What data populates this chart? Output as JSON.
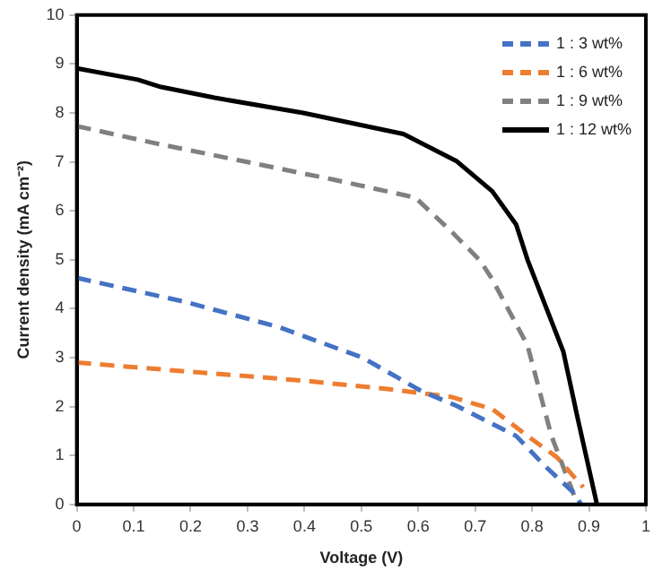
{
  "chart_data": {
    "type": "line",
    "xlabel": "Voltage (V)",
    "ylabel": "Current density (mA cm⁻²)",
    "xlim": [
      0,
      1
    ],
    "xticks": [
      0,
      0.1,
      0.2,
      0.3,
      0.4,
      0.5,
      0.6,
      0.7,
      0.8,
      0.9,
      1
    ],
    "ylim": [
      0,
      10
    ],
    "yticks": [
      0,
      1,
      2,
      3,
      4,
      5,
      6,
      7,
      8,
      9,
      10
    ],
    "grid": false,
    "legend": "top right",
    "marker": "none",
    "series": [
      {
        "name": "1 : 3 wt%",
        "color": "#4472c4",
        "line_style": "dashed",
        "x": [
          0,
          0.19,
          0.356,
          0.502,
          0.605,
          0.668,
          0.772,
          0.823,
          0.875,
          0.886
        ],
        "values": [
          4.63,
          4.14,
          3.62,
          3.0,
          2.32,
          2.01,
          1.4,
          0.78,
          0.22,
          0
        ]
      },
      {
        "name": "1 : 6 wt%",
        "color": "#ed7d31",
        "line_style": "dashed",
        "x": [
          0,
          0.19,
          0.398,
          0.553,
          0.657,
          0.73,
          0.792,
          0.844,
          0.89
        ],
        "values": [
          2.9,
          2.72,
          2.53,
          2.35,
          2.2,
          1.95,
          1.4,
          0.96,
          0.35
        ]
      },
      {
        "name": "1 : 9 wt%",
        "color": "#808080",
        "line_style": "dashed",
        "x": [
          0,
          0.138,
          0.294,
          0.45,
          0.595,
          0.657,
          0.709,
          0.73,
          0.792,
          0.834,
          0.88
        ],
        "values": [
          7.73,
          7.38,
          7.01,
          6.64,
          6.27,
          5.59,
          4.98,
          4.6,
          3.25,
          1.4,
          0
        ]
      },
      {
        "name": "1 : 12 wt%",
        "color": "#000000",
        "line_style": "solid",
        "x": [
          0,
          0.107,
          0.148,
          0.242,
          0.398,
          0.574,
          0.668,
          0.73,
          0.772,
          0.792,
          0.855,
          0.88,
          0.914
        ],
        "values": [
          8.91,
          8.68,
          8.53,
          8.31,
          8.0,
          7.57,
          7.01,
          6.4,
          5.72,
          5.0,
          3.12,
          1.77,
          0
        ]
      }
    ]
  }
}
